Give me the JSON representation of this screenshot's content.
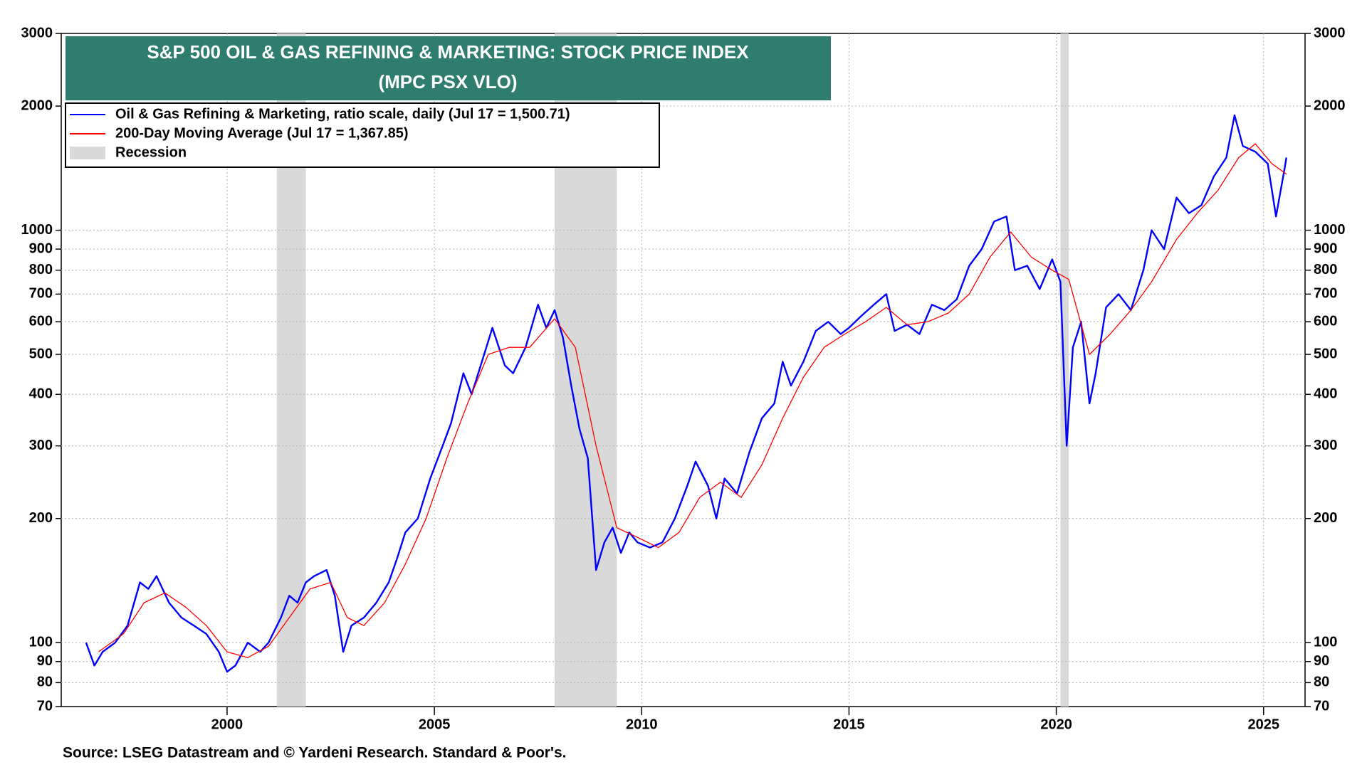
{
  "chart_data": {
    "type": "line",
    "title": [
      "S&P 500 OIL & GAS REFINING & MARKETING: STOCK PRICE INDEX",
      "(MPC PSX VLO)"
    ],
    "source": "Source: LSEG Datastream and © Yardeni Research. Standard & Poor's.",
    "log_scale": true,
    "grid": true,
    "legend": "upper left",
    "xlim": [
      1996,
      2026
    ],
    "xticks": [
      2000,
      2005,
      2010,
      2015,
      2020,
      2025
    ],
    "ylim": [
      70,
      3000
    ],
    "yticks": [
      70,
      80,
      90,
      100,
      200,
      300,
      400,
      500,
      600,
      700,
      800,
      900,
      1000,
      2000,
      3000
    ],
    "recession_label": "Recession",
    "recession_color": "#d9d9d9",
    "recessions": [
      {
        "start": 2001.2,
        "end": 2001.9
      },
      {
        "start": 2007.9,
        "end": 2009.4
      },
      {
        "start": 2020.1,
        "end": 2020.3
      }
    ],
    "series": [
      {
        "name": "Oil & Gas Refining & Marketing, ratio scale, daily (Jul 17 = 1,500.71)",
        "color": "#0000ff",
        "x": [
          1996.6,
          1996.8,
          1997.0,
          1997.3,
          1997.6,
          1997.9,
          1998.1,
          1998.3,
          1998.6,
          1998.9,
          1999.2,
          1999.5,
          1999.8,
          2000.0,
          2000.2,
          2000.5,
          2000.8,
          2001.0,
          2001.3,
          2001.5,
          2001.7,
          2001.9,
          2002.1,
          2002.4,
          2002.6,
          2002.8,
          2003.0,
          2003.3,
          2003.6,
          2003.9,
          2004.1,
          2004.3,
          2004.6,
          2004.9,
          2005.2,
          2005.4,
          2005.7,
          2005.9,
          2006.2,
          2006.4,
          2006.7,
          2006.9,
          2007.2,
          2007.5,
          2007.7,
          2007.9,
          2008.1,
          2008.3,
          2008.5,
          2008.7,
          2008.9,
          2009.1,
          2009.3,
          2009.5,
          2009.7,
          2009.9,
          2010.2,
          2010.5,
          2010.8,
          2011.1,
          2011.3,
          2011.6,
          2011.8,
          2012.0,
          2012.3,
          2012.6,
          2012.9,
          2013.2,
          2013.4,
          2013.6,
          2013.9,
          2014.2,
          2014.5,
          2014.8,
          2015.0,
          2015.3,
          2015.6,
          2015.9,
          2016.1,
          2016.4,
          2016.7,
          2017.0,
          2017.3,
          2017.6,
          2017.9,
          2018.2,
          2018.5,
          2018.8,
          2019.0,
          2019.3,
          2019.6,
          2019.9,
          2020.1,
          2020.25,
          2020.4,
          2020.6,
          2020.8,
          2020.95,
          2021.2,
          2021.5,
          2021.8,
          2022.1,
          2022.3,
          2022.6,
          2022.9,
          2023.2,
          2023.5,
          2023.8,
          2024.1,
          2024.3,
          2024.5,
          2024.8,
          2025.1,
          2025.3,
          2025.5,
          2025.55
        ],
        "values": [
          100,
          88,
          95,
          100,
          110,
          140,
          135,
          145,
          125,
          115,
          110,
          105,
          95,
          85,
          88,
          100,
          95,
          100,
          115,
          130,
          125,
          140,
          145,
          150,
          130,
          95,
          110,
          115,
          125,
          140,
          160,
          185,
          200,
          250,
          300,
          340,
          450,
          400,
          500,
          580,
          470,
          450,
          520,
          660,
          580,
          640,
          550,
          420,
          330,
          280,
          150,
          175,
          190,
          165,
          185,
          175,
          170,
          175,
          200,
          240,
          275,
          240,
          200,
          250,
          230,
          290,
          350,
          380,
          480,
          420,
          480,
          570,
          600,
          560,
          580,
          620,
          660,
          700,
          570,
          590,
          560,
          660,
          640,
          680,
          820,
          900,
          1050,
          1080,
          800,
          820,
          720,
          850,
          750,
          300,
          520,
          600,
          380,
          450,
          650,
          700,
          640,
          800,
          1000,
          900,
          1200,
          1100,
          1150,
          1350,
          1500,
          1900,
          1600,
          1550,
          1450,
          1080,
          1400,
          1500.71
        ]
      },
      {
        "name": "200-Day Moving Average (Jul 17 = 1,367.85)",
        "color": "#ff0000",
        "x": [
          1996.9,
          1997.5,
          1998.0,
          1998.5,
          1999.0,
          1999.5,
          2000.0,
          2000.5,
          2001.0,
          2001.5,
          2002.0,
          2002.5,
          2002.9,
          2003.3,
          2003.8,
          2004.3,
          2004.8,
          2005.3,
          2005.8,
          2006.3,
          2006.8,
          2007.3,
          2007.9,
          2008.4,
          2008.9,
          2009.4,
          2009.9,
          2010.4,
          2010.9,
          2011.4,
          2011.9,
          2012.4,
          2012.9,
          2013.4,
          2013.9,
          2014.4,
          2014.9,
          2015.4,
          2015.9,
          2016.4,
          2016.9,
          2017.4,
          2017.9,
          2018.4,
          2018.9,
          2019.4,
          2019.9,
          2020.3,
          2020.8,
          2021.3,
          2021.8,
          2022.3,
          2022.9,
          2023.4,
          2023.9,
          2024.4,
          2024.8,
          2025.2,
          2025.55
        ],
        "values": [
          95,
          105,
          125,
          132,
          122,
          110,
          95,
          92,
          98,
          115,
          135,
          140,
          115,
          110,
          125,
          155,
          200,
          280,
          380,
          500,
          520,
          520,
          610,
          520,
          300,
          190,
          180,
          170,
          185,
          225,
          245,
          225,
          270,
          350,
          440,
          520,
          560,
          600,
          650,
          590,
          600,
          630,
          700,
          860,
          990,
          860,
          800,
          760,
          500,
          560,
          640,
          750,
          950,
          1100,
          1250,
          1500,
          1620,
          1450,
          1367.85
        ]
      }
    ]
  }
}
